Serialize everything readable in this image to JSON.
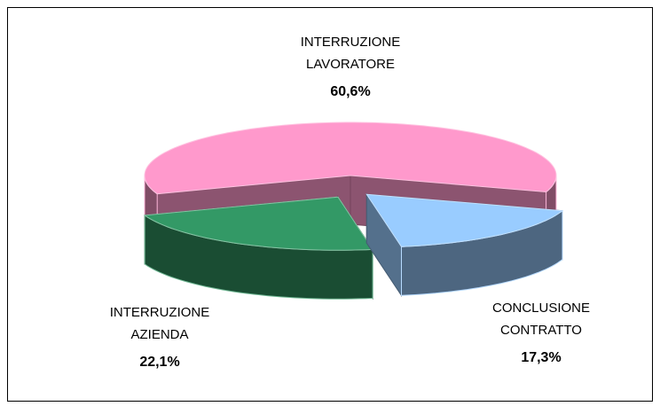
{
  "chart_data": {
    "type": "pie3d",
    "categories": [
      "INTERRUZIONE LAVORATORE",
      "INTERRUZIONE AZIENDA",
      "CONCLUSIONE CONTRATTO"
    ],
    "values": [
      60.6,
      22.1,
      17.3
    ],
    "value_labels": [
      "60,6%",
      "22,1%",
      "17,3%"
    ],
    "colors": [
      "#ff99cc",
      "#339966",
      "#99ccff"
    ]
  }
}
